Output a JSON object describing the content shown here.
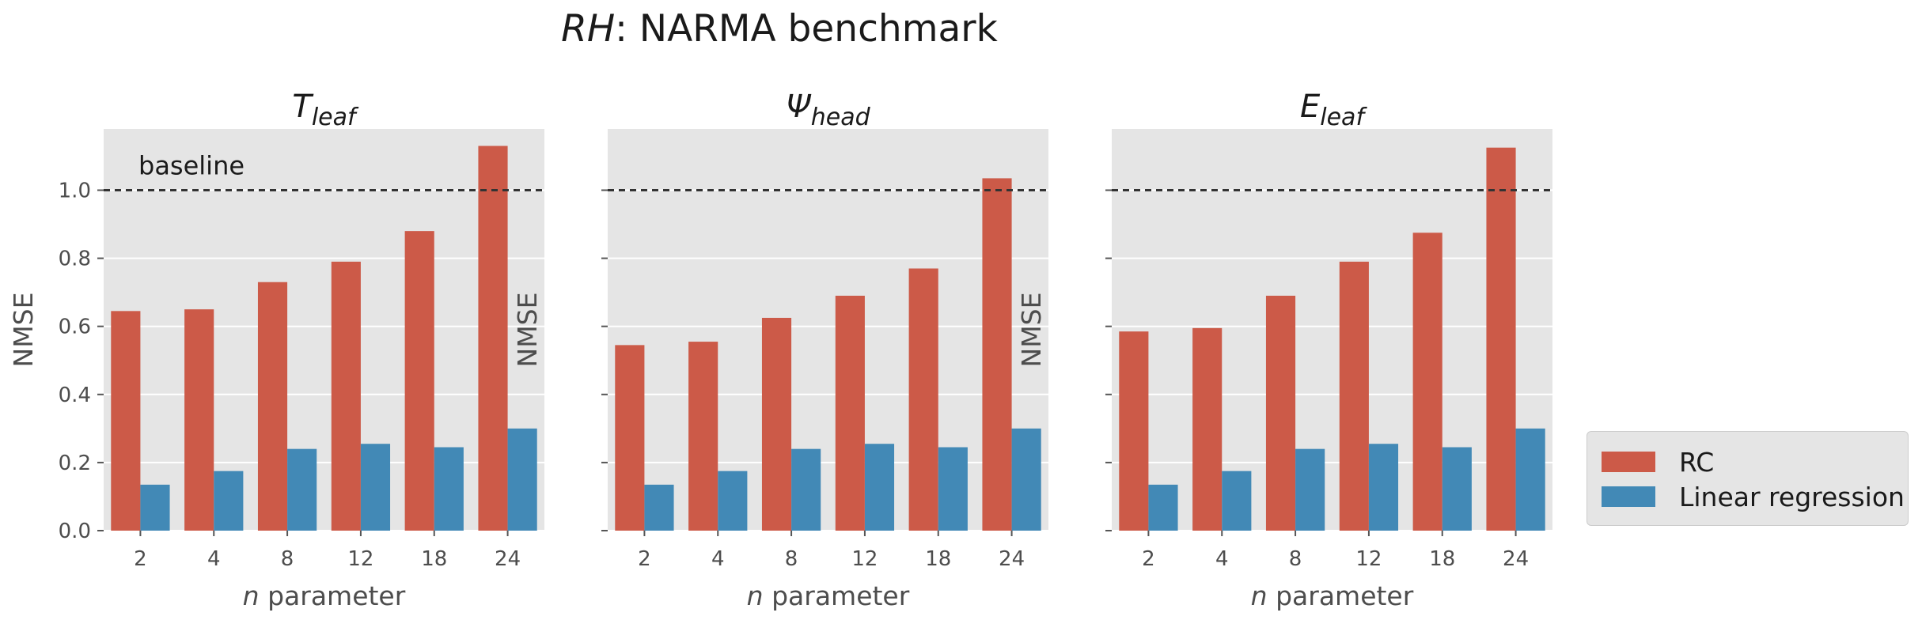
{
  "figure_title": {
    "prefix": "RH",
    "suffix": ": NARMA benchmark"
  },
  "colors": {
    "rc": "#cc5a48",
    "linear": "#4289b6",
    "panel_bg": "#e5e5e5",
    "grid": "#ffffff",
    "baseline": "#333333"
  },
  "legend": {
    "placement": "lower-right outside",
    "items": [
      {
        "label": "RC",
        "series": "rc"
      },
      {
        "label": "Linear regression",
        "series": "linear"
      }
    ]
  },
  "chart_data": [
    {
      "type": "bar",
      "title": {
        "main": "T",
        "sub": "leaf"
      },
      "xlabel": {
        "italic": "n",
        "rest": " parameter"
      },
      "ylabel": "NMSE",
      "categories": [
        "2",
        "4",
        "8",
        "12",
        "18",
        "24"
      ],
      "ylim": [
        0,
        1.18
      ],
      "yticks": [
        "0.0",
        "0.2",
        "0.4",
        "0.6",
        "0.8",
        "1.0"
      ],
      "show_ytick_labels": true,
      "baseline": {
        "value": 1.0,
        "label": "baseline"
      },
      "grid": true,
      "series": [
        {
          "name": "RC",
          "key": "rc",
          "values": [
            0.645,
            0.65,
            0.73,
            0.79,
            0.88,
            1.13
          ]
        },
        {
          "name": "Linear regression",
          "key": "linear",
          "values": [
            0.135,
            0.175,
            0.24,
            0.255,
            0.245,
            0.3
          ]
        }
      ]
    },
    {
      "type": "bar",
      "title": {
        "main": "Ψ",
        "sub": "head"
      },
      "xlabel": {
        "italic": "n",
        "rest": " parameter"
      },
      "ylabel": "NMSE",
      "categories": [
        "2",
        "4",
        "8",
        "12",
        "18",
        "24"
      ],
      "ylim": [
        0,
        1.18
      ],
      "yticks": [
        "0.0",
        "0.2",
        "0.4",
        "0.6",
        "0.8",
        "1.0"
      ],
      "show_ytick_labels": false,
      "baseline": {
        "value": 1.0,
        "label": ""
      },
      "grid": true,
      "series": [
        {
          "name": "RC",
          "key": "rc",
          "values": [
            0.545,
            0.555,
            0.625,
            0.69,
            0.77,
            1.035
          ]
        },
        {
          "name": "Linear regression",
          "key": "linear",
          "values": [
            0.135,
            0.175,
            0.24,
            0.255,
            0.245,
            0.3
          ]
        }
      ]
    },
    {
      "type": "bar",
      "title": {
        "main": "E",
        "sub": "leaf"
      },
      "xlabel": {
        "italic": "n",
        "rest": " parameter"
      },
      "ylabel": "NMSE",
      "categories": [
        "2",
        "4",
        "8",
        "12",
        "18",
        "24"
      ],
      "ylim": [
        0,
        1.18
      ],
      "yticks": [
        "0.0",
        "0.2",
        "0.4",
        "0.6",
        "0.8",
        "1.0"
      ],
      "show_ytick_labels": false,
      "baseline": {
        "value": 1.0,
        "label": ""
      },
      "grid": true,
      "series": [
        {
          "name": "RC",
          "key": "rc",
          "values": [
            0.585,
            0.595,
            0.69,
            0.79,
            0.875,
            1.125
          ]
        },
        {
          "name": "Linear regression",
          "key": "linear",
          "values": [
            0.135,
            0.175,
            0.24,
            0.255,
            0.245,
            0.3
          ]
        }
      ]
    }
  ]
}
